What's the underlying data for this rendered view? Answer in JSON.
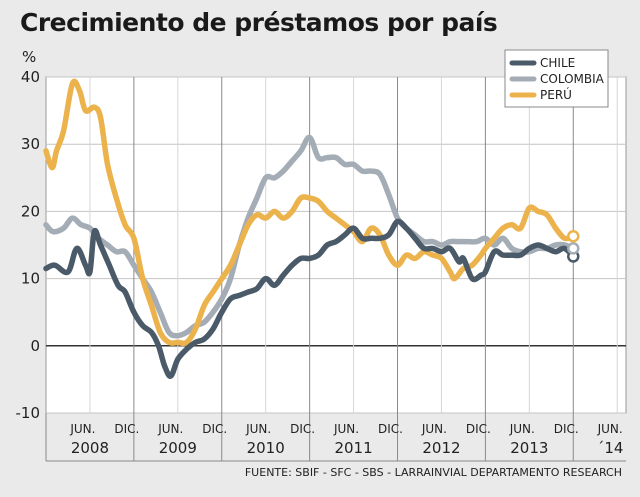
{
  "header": {
    "title": "Crecimiento de préstamos por país"
  },
  "footer": {
    "source": "FUENTE: SBIF - SFC - SBS - LARRAINVIAL DEPARTAMENTO RESEARCH"
  },
  "chart_data": {
    "type": "line",
    "title": "Crecimiento de préstamos por país",
    "ylabel": "%",
    "xlabel": "",
    "ylim": [
      -10,
      40
    ],
    "yticks": [
      -10,
      0,
      10,
      20,
      30,
      40
    ],
    "month_labels": [
      {
        "label": "JUN.",
        "x": 2008.42
      },
      {
        "label": "DIC.",
        "x": 2008.92
      },
      {
        "label": "JUN.",
        "x": 2009.42
      },
      {
        "label": "DIC.",
        "x": 2009.92
      },
      {
        "label": "JUN.",
        "x": 2010.42
      },
      {
        "label": "DIC.",
        "x": 2010.92
      },
      {
        "label": "JUN.",
        "x": 2011.42
      },
      {
        "label": "DIC.",
        "x": 2011.92
      },
      {
        "label": "JUN.",
        "x": 2012.42
      },
      {
        "label": "DIC.",
        "x": 2012.92
      },
      {
        "label": "JUN.",
        "x": 2013.42
      },
      {
        "label": "DIC.",
        "x": 2013.92
      },
      {
        "label": "JUN.",
        "x": 2014.42
      }
    ],
    "year_labels": [
      {
        "label": "2008",
        "x": 2008.5
      },
      {
        "label": "2009",
        "x": 2009.5
      },
      {
        "label": "2010",
        "x": 2010.5
      },
      {
        "label": "2011",
        "x": 2011.5
      },
      {
        "label": "2012",
        "x": 2012.5
      },
      {
        "label": "2013",
        "x": 2013.5
      },
      {
        "label": "´14",
        "x": 2014.42
      }
    ],
    "xlim": [
      2008.0,
      2014.6
    ],
    "series": [
      {
        "name": "CHILE",
        "color": "#4a5a68",
        "points": [
          [
            2008.0,
            11.5
          ],
          [
            2008.1,
            12
          ],
          [
            2008.25,
            11
          ],
          [
            2008.35,
            14.5
          ],
          [
            2008.45,
            12
          ],
          [
            2008.5,
            11
          ],
          [
            2008.55,
            17
          ],
          [
            2008.62,
            15
          ],
          [
            2008.72,
            12
          ],
          [
            2008.82,
            9
          ],
          [
            2008.9,
            8
          ],
          [
            2009.0,
            5
          ],
          [
            2009.1,
            3
          ],
          [
            2009.2,
            2
          ],
          [
            2009.28,
            0
          ],
          [
            2009.35,
            -3
          ],
          [
            2009.42,
            -4.5
          ],
          [
            2009.5,
            -2
          ],
          [
            2009.6,
            -0.5
          ],
          [
            2009.7,
            0.5
          ],
          [
            2009.8,
            1
          ],
          [
            2009.9,
            2.5
          ],
          [
            2010.0,
            5
          ],
          [
            2010.1,
            7
          ],
          [
            2010.2,
            7.5
          ],
          [
            2010.3,
            8
          ],
          [
            2010.4,
            8.5
          ],
          [
            2010.5,
            10
          ],
          [
            2010.6,
            9
          ],
          [
            2010.7,
            10.5
          ],
          [
            2010.8,
            12
          ],
          [
            2010.9,
            13
          ],
          [
            2011.0,
            13
          ],
          [
            2011.1,
            13.5
          ],
          [
            2011.2,
            15
          ],
          [
            2011.3,
            15.5
          ],
          [
            2011.4,
            16.5
          ],
          [
            2011.5,
            17.5
          ],
          [
            2011.6,
            16
          ],
          [
            2011.7,
            16
          ],
          [
            2011.8,
            16
          ],
          [
            2011.9,
            16.5
          ],
          [
            2012.0,
            18.5
          ],
          [
            2012.1,
            17.5
          ],
          [
            2012.2,
            16
          ],
          [
            2012.3,
            14.5
          ],
          [
            2012.4,
            14.5
          ],
          [
            2012.5,
            14
          ],
          [
            2012.6,
            14.5
          ],
          [
            2012.7,
            12.5
          ],
          [
            2012.75,
            13
          ],
          [
            2012.85,
            10
          ],
          [
            2012.95,
            10.5
          ],
          [
            2013.0,
            11
          ],
          [
            2013.1,
            14
          ],
          [
            2013.2,
            13.5
          ],
          [
            2013.3,
            13.5
          ],
          [
            2013.4,
            13.5
          ],
          [
            2013.5,
            14.5
          ],
          [
            2013.6,
            15
          ],
          [
            2013.7,
            14.5
          ],
          [
            2013.8,
            14
          ],
          [
            2013.9,
            14.5
          ],
          [
            2014.0,
            13.3
          ]
        ]
      },
      {
        "name": "COLOMBIA",
        "color": "#a4adb6",
        "points": [
          [
            2008.0,
            18
          ],
          [
            2008.08,
            17
          ],
          [
            2008.2,
            17.5
          ],
          [
            2008.3,
            19
          ],
          [
            2008.4,
            18
          ],
          [
            2008.5,
            17.5
          ],
          [
            2008.6,
            16
          ],
          [
            2008.7,
            15
          ],
          [
            2008.8,
            14
          ],
          [
            2008.9,
            14
          ],
          [
            2009.0,
            12
          ],
          [
            2009.1,
            10
          ],
          [
            2009.2,
            8
          ],
          [
            2009.3,
            5
          ],
          [
            2009.4,
            2
          ],
          [
            2009.5,
            1.5
          ],
          [
            2009.6,
            2
          ],
          [
            2009.7,
            3
          ],
          [
            2009.8,
            3.5
          ],
          [
            2009.9,
            5
          ],
          [
            2010.0,
            7
          ],
          [
            2010.1,
            10
          ],
          [
            2010.2,
            15
          ],
          [
            2010.3,
            19
          ],
          [
            2010.4,
            22
          ],
          [
            2010.5,
            25
          ],
          [
            2010.6,
            25
          ],
          [
            2010.7,
            26
          ],
          [
            2010.8,
            27.5
          ],
          [
            2010.9,
            29
          ],
          [
            2011.0,
            31
          ],
          [
            2011.1,
            28
          ],
          [
            2011.2,
            28
          ],
          [
            2011.3,
            28
          ],
          [
            2011.4,
            27
          ],
          [
            2011.5,
            27
          ],
          [
            2011.6,
            26
          ],
          [
            2011.7,
            26
          ],
          [
            2011.8,
            25.5
          ],
          [
            2011.9,
            22.5
          ],
          [
            2012.0,
            19
          ],
          [
            2012.1,
            17.5
          ],
          [
            2012.2,
            16.5
          ],
          [
            2012.3,
            15.5
          ],
          [
            2012.4,
            15.5
          ],
          [
            2012.5,
            15
          ],
          [
            2012.6,
            15.5
          ],
          [
            2012.7,
            15.5
          ],
          [
            2012.8,
            15.5
          ],
          [
            2012.9,
            15.5
          ],
          [
            2013.0,
            16
          ],
          [
            2013.1,
            15
          ],
          [
            2013.2,
            16
          ],
          [
            2013.3,
            14.5
          ],
          [
            2013.4,
            14
          ],
          [
            2013.5,
            14
          ],
          [
            2013.6,
            14.5
          ],
          [
            2013.7,
            14.5
          ],
          [
            2013.8,
            15
          ],
          [
            2013.9,
            15
          ],
          [
            2014.0,
            14.5
          ]
        ]
      },
      {
        "name": "PERÚ",
        "color": "#ecb24c",
        "points": [
          [
            2008.0,
            29
          ],
          [
            2008.07,
            26.5
          ],
          [
            2008.12,
            29
          ],
          [
            2008.2,
            32
          ],
          [
            2008.3,
            39
          ],
          [
            2008.38,
            38
          ],
          [
            2008.45,
            35
          ],
          [
            2008.55,
            35.5
          ],
          [
            2008.62,
            34
          ],
          [
            2008.7,
            27
          ],
          [
            2008.8,
            22
          ],
          [
            2008.9,
            18
          ],
          [
            2009.0,
            16
          ],
          [
            2009.1,
            10
          ],
          [
            2009.2,
            6
          ],
          [
            2009.3,
            2
          ],
          [
            2009.4,
            0.5
          ],
          [
            2009.5,
            0.5
          ],
          [
            2009.6,
            0.5
          ],
          [
            2009.7,
            2.5
          ],
          [
            2009.8,
            6
          ],
          [
            2009.9,
            8
          ],
          [
            2010.0,
            10
          ],
          [
            2010.1,
            12
          ],
          [
            2010.2,
            15
          ],
          [
            2010.3,
            18
          ],
          [
            2010.4,
            19.5
          ],
          [
            2010.5,
            19
          ],
          [
            2010.6,
            20
          ],
          [
            2010.7,
            19
          ],
          [
            2010.8,
            20
          ],
          [
            2010.9,
            22
          ],
          [
            2011.0,
            22
          ],
          [
            2011.1,
            21.5
          ],
          [
            2011.2,
            20
          ],
          [
            2011.3,
            19
          ],
          [
            2011.4,
            18
          ],
          [
            2011.5,
            17
          ],
          [
            2011.6,
            15.5
          ],
          [
            2011.7,
            17.5
          ],
          [
            2011.8,
            16.5
          ],
          [
            2011.9,
            13.5
          ],
          [
            2012.0,
            12
          ],
          [
            2012.1,
            13.5
          ],
          [
            2012.2,
            13
          ],
          [
            2012.3,
            14
          ],
          [
            2012.4,
            13.5
          ],
          [
            2012.5,
            13
          ],
          [
            2012.6,
            11
          ],
          [
            2012.65,
            10
          ],
          [
            2012.75,
            11.5
          ],
          [
            2012.85,
            12
          ],
          [
            2012.95,
            13.5
          ],
          [
            2013.0,
            14.5
          ],
          [
            2013.1,
            16
          ],
          [
            2013.2,
            17.5
          ],
          [
            2013.3,
            18
          ],
          [
            2013.4,
            17.5
          ],
          [
            2013.5,
            20.5
          ],
          [
            2013.6,
            20
          ],
          [
            2013.7,
            19.5
          ],
          [
            2013.8,
            17.5
          ],
          [
            2013.9,
            16
          ],
          [
            2014.0,
            16.3
          ]
        ]
      }
    ]
  }
}
